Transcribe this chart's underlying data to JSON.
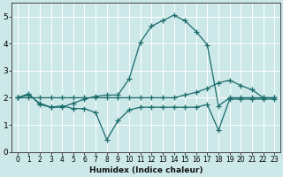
{
  "xlabel": "Humidex (Indice chaleur)",
  "xlim": [
    -0.5,
    23.5
  ],
  "ylim": [
    0,
    5.5
  ],
  "yticks": [
    0,
    1,
    2,
    3,
    4,
    5
  ],
  "xticks": [
    0,
    1,
    2,
    3,
    4,
    5,
    6,
    7,
    8,
    9,
    10,
    11,
    12,
    13,
    14,
    15,
    16,
    17,
    18,
    19,
    20,
    21,
    22,
    23
  ],
  "bg_color": "#cce8e8",
  "grid_color": "#ffffff",
  "line_color": "#1a6b6b",
  "series": [
    {
      "x": [
        0,
        1,
        2,
        3,
        4,
        5,
        6,
        7,
        8,
        9,
        10,
        11,
        12,
        13,
        14,
        15,
        16,
        17,
        18,
        19,
        20,
        21,
        22,
        23
      ],
      "y": [
        2.0,
        2.15,
        1.75,
        1.65,
        1.7,
        1.6,
        1.6,
        1.45,
        0.45,
        1.15,
        1.55,
        1.65,
        1.65,
        1.65,
        1.65,
        1.65,
        1.65,
        1.75,
        0.8,
        1.95,
        1.95,
        1.95,
        1.95,
        1.95
      ]
    },
    {
      "x": [
        0,
        1,
        2,
        3,
        4,
        5,
        6,
        7,
        8,
        9,
        10,
        11,
        12,
        13,
        14,
        15,
        16,
        17,
        18,
        19,
        20,
        21,
        22,
        23
      ],
      "y": [
        2.0,
        2.1,
        1.8,
        1.65,
        1.65,
        1.8,
        1.95,
        2.05,
        2.1,
        2.1,
        2.7,
        4.05,
        4.65,
        4.85,
        5.05,
        4.85,
        4.45,
        3.95,
        1.7,
        2.0,
        2.0,
        2.0,
        2.0,
        2.0
      ]
    },
    {
      "x": [
        0,
        1,
        2,
        3,
        4,
        5,
        6,
        7,
        8,
        9,
        10,
        11,
        12,
        13,
        14,
        15,
        16,
        17,
        18,
        19,
        20,
        21,
        22,
        23
      ],
      "y": [
        2.0,
        2.0,
        2.0,
        2.0,
        2.0,
        2.0,
        2.0,
        2.0,
        2.0,
        2.0,
        2.0,
        2.0,
        2.0,
        2.0,
        2.0,
        2.1,
        2.2,
        2.35,
        2.55,
        2.65,
        2.45,
        2.3,
        2.0,
        2.0
      ]
    }
  ]
}
